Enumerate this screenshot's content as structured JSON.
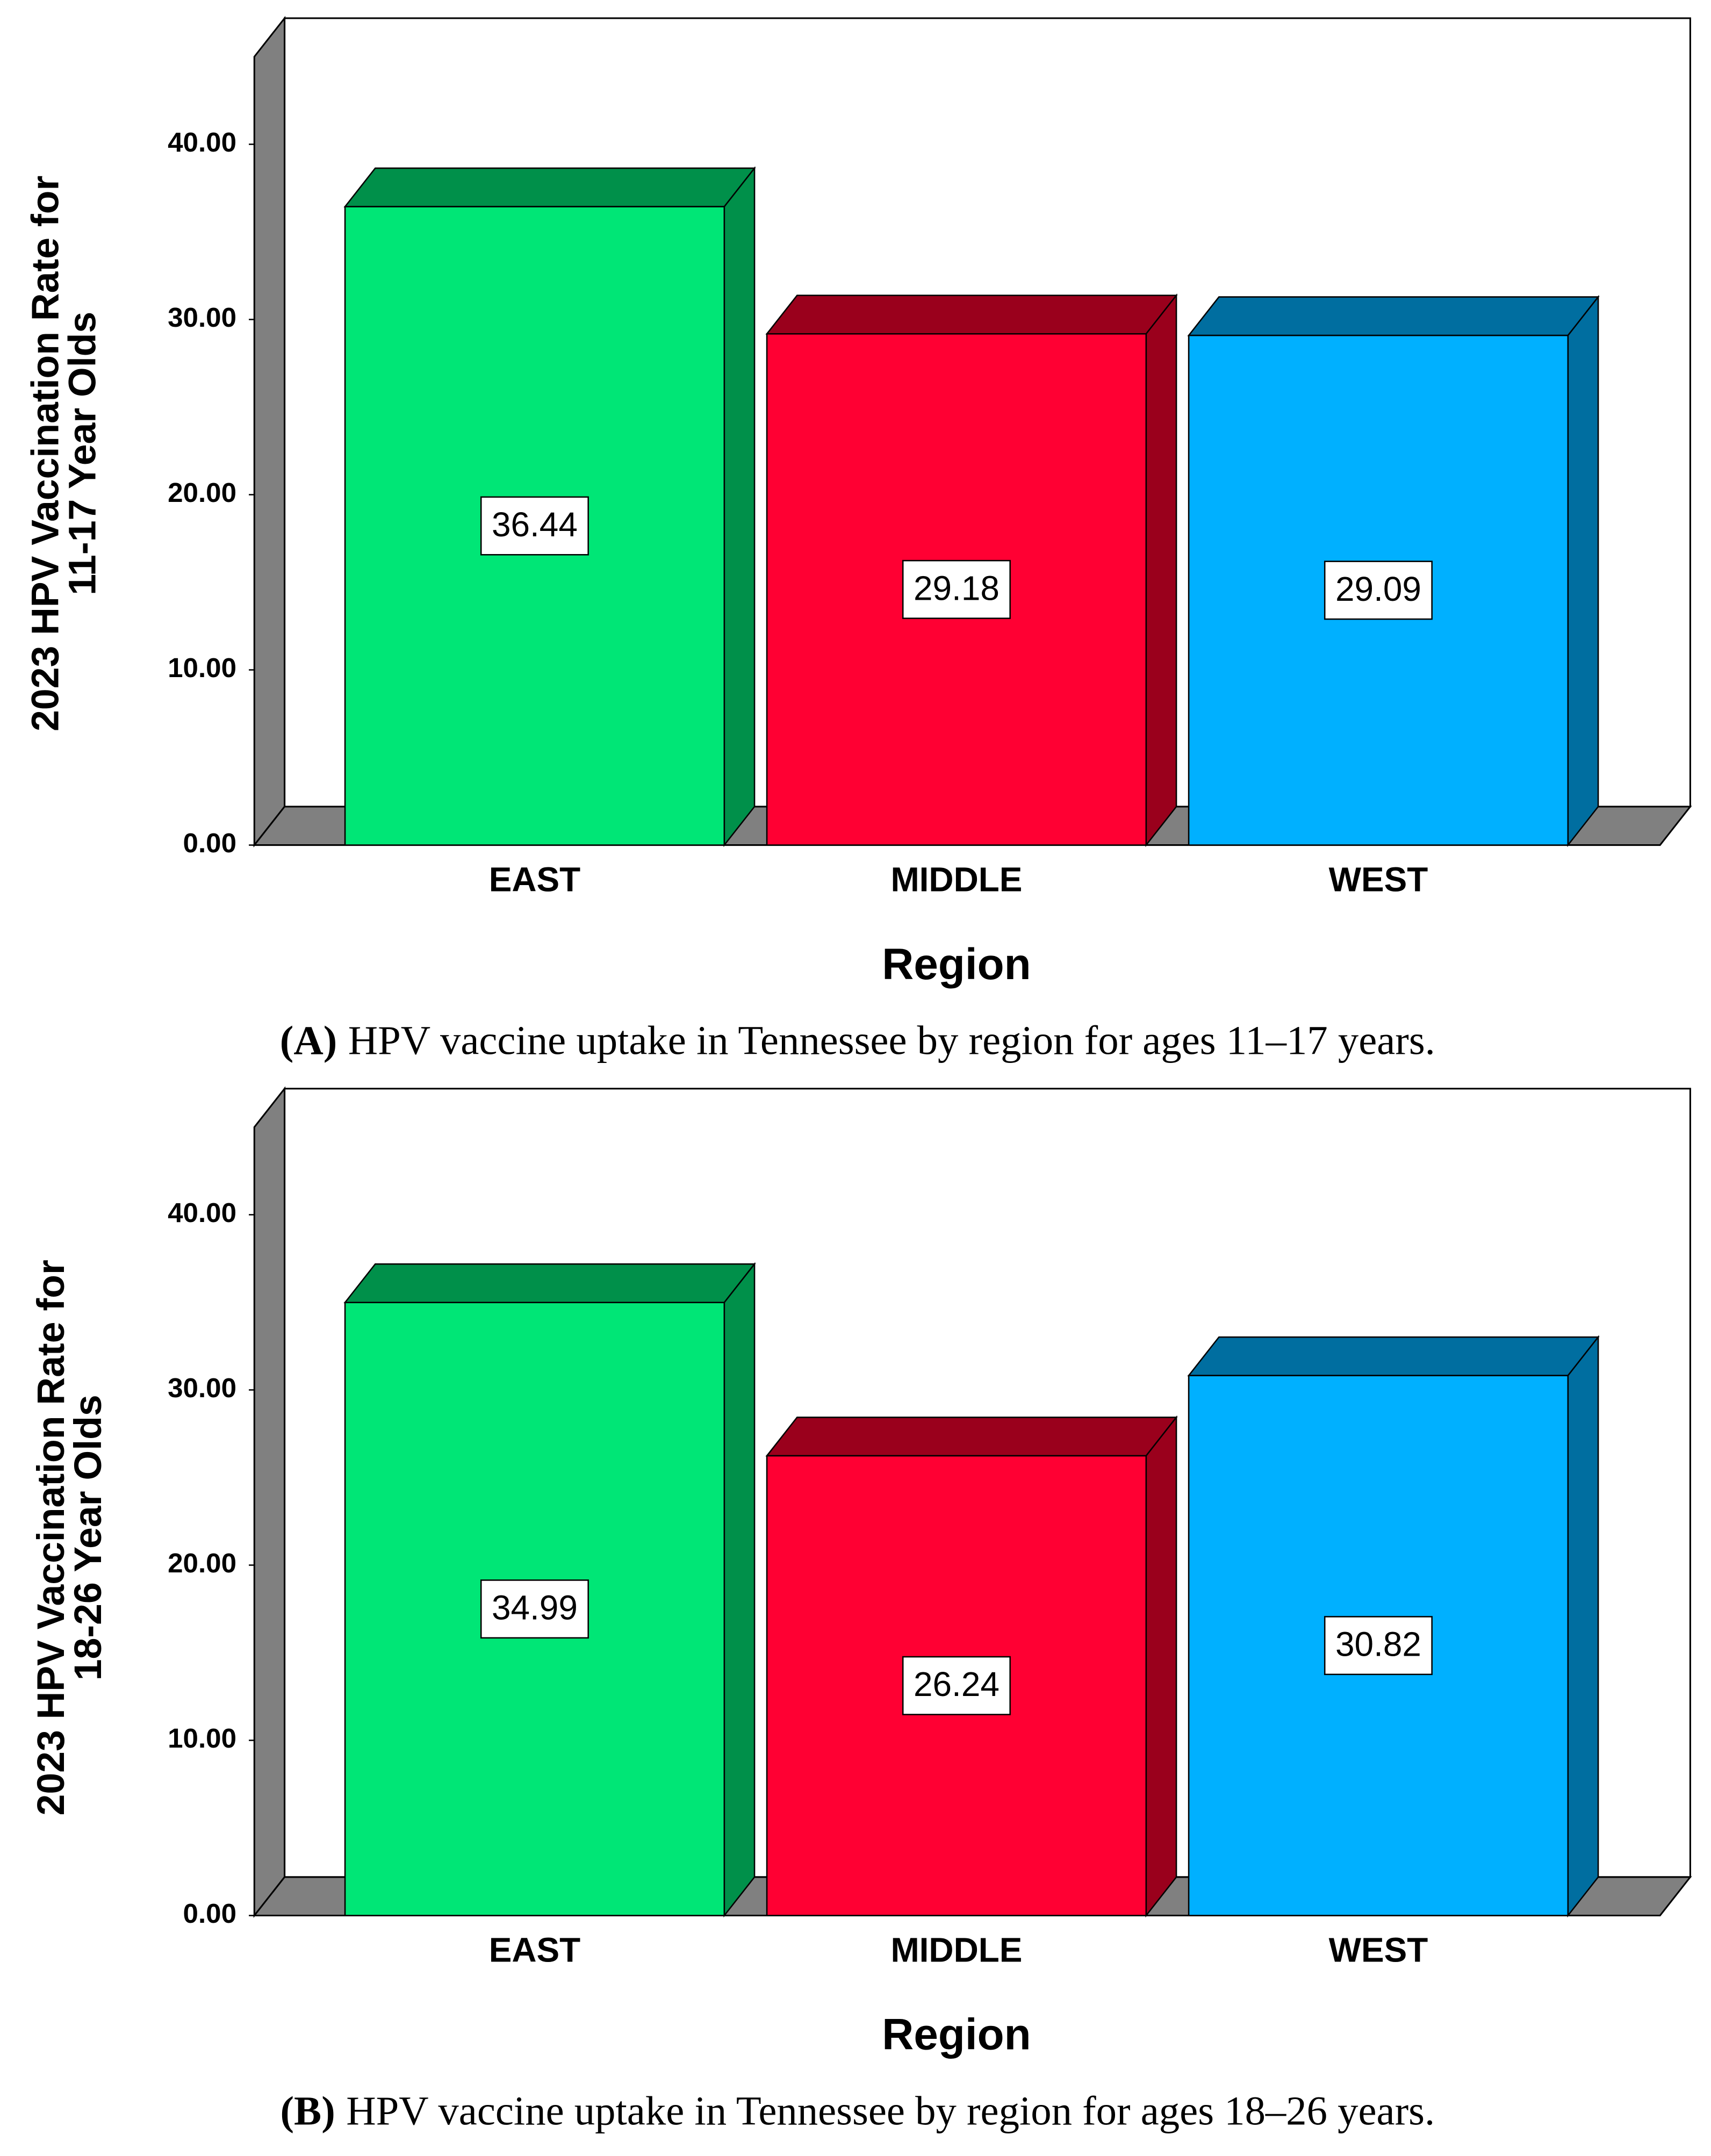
{
  "chart_data": [
    {
      "type": "bar",
      "y_label": [
        "2023 HPV Vaccination Rate for",
        "11-17 Year Olds"
      ],
      "x_label": "Region",
      "categories": [
        "EAST",
        "MIDDLE",
        "WEST"
      ],
      "values": [
        36.44,
        29.18,
        29.09
      ],
      "colors": [
        "#00e676",
        "#ff0033",
        "#00b0ff"
      ],
      "side_colors": [
        "#00904a",
        "#9a001c",
        "#006ea0"
      ],
      "ylim": [
        0,
        45
      ],
      "yticks": [
        {
          "value": 0,
          "label": "0.00"
        },
        {
          "value": 10,
          "label": "10.00"
        },
        {
          "value": 20,
          "label": "20.00"
        },
        {
          "value": 30,
          "label": "30.00"
        },
        {
          "value": 40,
          "label": "40.00"
        }
      ],
      "caption_label": "(A)",
      "caption": "HPV vaccine uptake in Tennessee by region for ages 11–17 years."
    },
    {
      "type": "bar",
      "y_label": [
        "2023 HPV Vaccination Rate for",
        "18-26 Year Olds"
      ],
      "x_label": "Region",
      "categories": [
        "EAST",
        "MIDDLE",
        "WEST"
      ],
      "values": [
        34.99,
        26.24,
        30.82
      ],
      "colors": [
        "#00e676",
        "#ff0033",
        "#00b0ff"
      ],
      "side_colors": [
        "#00904a",
        "#9a001c",
        "#006ea0"
      ],
      "ylim": [
        0,
        45
      ],
      "yticks": [
        {
          "value": 0,
          "label": "0.00"
        },
        {
          "value": 10,
          "label": "10.00"
        },
        {
          "value": 20,
          "label": "20.00"
        },
        {
          "value": 30,
          "label": "30.00"
        },
        {
          "value": 40,
          "label": "40.00"
        }
      ],
      "caption_label": "(B)",
      "caption": "HPV vaccine uptake in Tennessee by region for ages 18–26 years."
    }
  ]
}
